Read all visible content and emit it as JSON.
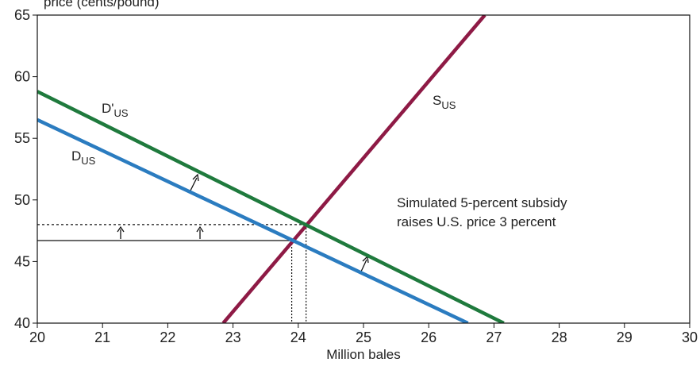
{
  "chart_data": {
    "type": "line",
    "ylabel": "price (cents/pound)",
    "xlabel": "Million bales",
    "annotation": [
      "Simulated 5-percent subsidy",
      "raises U.S. price 3 percent"
    ],
    "series": [
      {
        "name": "S",
        "name_sub": "US",
        "color": "#8e1a45",
        "x": [
          22.85,
          26.86
        ],
        "values": [
          40,
          65
        ]
      },
      {
        "name": "D'",
        "name_sub": "US",
        "color": "#1f7a3d",
        "x": [
          20,
          27.15
        ],
        "values": [
          58.8,
          40
        ]
      },
      {
        "name": "D",
        "name_sub": "US",
        "color": "#2b7cc0",
        "x": [
          20,
          26.6
        ],
        "values": [
          56.5,
          40
        ]
      }
    ],
    "equilibria": [
      {
        "x": 23.9,
        "y": 46.7,
        "style": "solid"
      },
      {
        "x": 24.12,
        "y": 48,
        "style": "dotted"
      }
    ],
    "xlim": [
      20,
      30
    ],
    "xticks": [
      20,
      21,
      22,
      23,
      24,
      25,
      26,
      27,
      28,
      29,
      30
    ],
    "ylim": [
      40,
      65
    ],
    "yticks": [
      40,
      45,
      50,
      55,
      60,
      65
    ]
  }
}
